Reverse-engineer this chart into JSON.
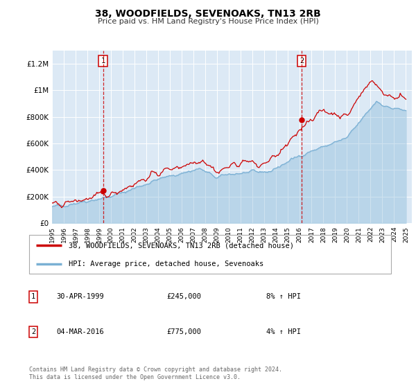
{
  "title": "38, WOODFIELDS, SEVENOAKS, TN13 2RB",
  "subtitle": "Price paid vs. HM Land Registry's House Price Index (HPI)",
  "plot_bg_color": "#dce9f5",
  "ylabel_ticks": [
    "£0",
    "£200K",
    "£400K",
    "£600K",
    "£800K",
    "£1M",
    "£1.2M"
  ],
  "ytick_values": [
    0,
    200000,
    400000,
    600000,
    800000,
    1000000,
    1200000
  ],
  "ylim": [
    0,
    1300000
  ],
  "xmin_year": 1995.0,
  "xmax_year": 2025.5,
  "sale1_x": 1999.33,
  "sale1_price": 245000,
  "sale2_x": 2016.17,
  "sale2_price": 775000,
  "legend_line1": "38, WOODFIELDS, SEVENOAKS, TN13 2RB (detached house)",
  "legend_line2": "HPI: Average price, detached house, Sevenoaks",
  "table_row1": [
    "1",
    "30-APR-1999",
    "£245,000",
    "8% ↑ HPI"
  ],
  "table_row2": [
    "2",
    "04-MAR-2016",
    "£775,000",
    "4% ↑ HPI"
  ],
  "footer": "Contains HM Land Registry data © Crown copyright and database right 2024.\nThis data is licensed under the Open Government Licence v3.0.",
  "line_color_red": "#cc0000",
  "line_color_blue": "#7ab0d4",
  "grid_color": "#ffffff",
  "xtick_years": [
    1995,
    1996,
    1997,
    1998,
    1999,
    2000,
    2001,
    2002,
    2003,
    2004,
    2005,
    2006,
    2007,
    2008,
    2009,
    2010,
    2011,
    2012,
    2013,
    2014,
    2015,
    2016,
    2017,
    2018,
    2019,
    2020,
    2021,
    2022,
    2023,
    2024,
    2025
  ]
}
